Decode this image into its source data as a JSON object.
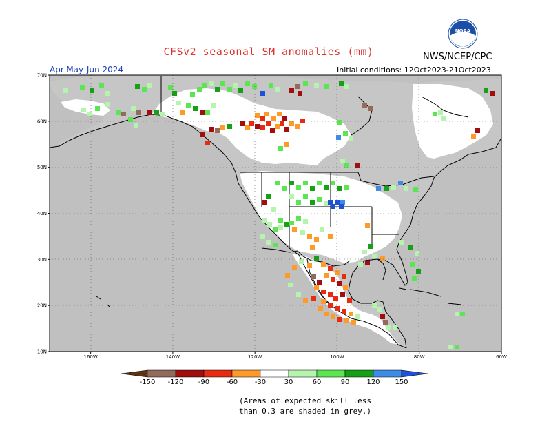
{
  "header": {
    "title": "CFSv2 seasonal SM anomalies (mm)",
    "agency": "NWS/NCEP/CPC",
    "logo_text": "NOAA",
    "period": "Apr-May-Jun 2024",
    "initial_conditions": "Initial conditions: 12Oct2023-21Oct2023"
  },
  "map": {
    "lat_ticks": [
      "70N",
      "60N",
      "50N",
      "40N",
      "30N",
      "20N",
      "10N"
    ],
    "lon_ticks": [
      "160W",
      "140W",
      "120W",
      "100W",
      "80W",
      "60W"
    ],
    "lon_range": [
      170,
      60
    ],
    "lat_range": [
      10,
      70
    ],
    "colors": {
      "land": "#ffffff",
      "no_skill": "#c0c0c0",
      "ocean": "#c0c0c0",
      "outline": "#000000"
    }
  },
  "legend": {
    "labels": [
      "-150",
      "-120",
      "-90",
      "-60",
      "-30",
      "30",
      "60",
      "90",
      "120",
      "150"
    ],
    "colors": [
      "#5c3412",
      "#946a5c",
      "#a00e0e",
      "#e02a10",
      "#ff6a10",
      "#ffb43a",
      "#ffffff",
      "#b4f4ac",
      "#5ae650",
      "#16a016",
      "#0a7010",
      "#3c8ce6",
      "#1e50d8"
    ]
  },
  "footnote": {
    "line1": "(Areas of expected skill less",
    "line2": "than 0.3 are shaded in grey.)"
  }
}
